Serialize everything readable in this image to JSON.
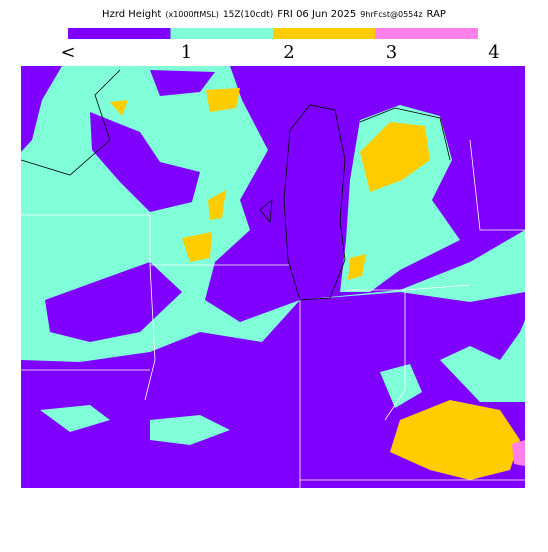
{
  "header": {
    "title_parts": [
      "Hzrd Height",
      "(x1000ftMSL)",
      "15Z(10cdt)",
      "FRI 06 Jun 2025",
      "9hrFcst@0554z",
      "RAP"
    ]
  },
  "legend": {
    "colors": [
      "#7f00ff",
      "#80ffd8",
      "#ffcc00",
      "#ff80e8"
    ],
    "labels": [
      "<",
      "1",
      "2",
      "3",
      "4"
    ]
  }
}
